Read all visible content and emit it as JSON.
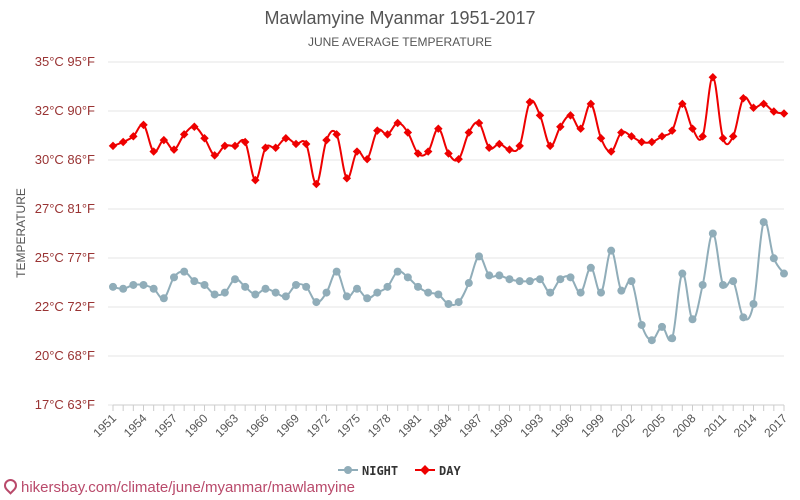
{
  "chart_data": {
    "type": "line",
    "title": "Mawlamyine Myanmar 1951-2017",
    "subtitle": "JUNE AVERAGE TEMPERATURE",
    "ylabel": "TEMPERATURE",
    "ylim": [
      17,
      35
    ],
    "y_ticks": [
      "17°C 63°F",
      "20°C 68°F",
      "22°C 72°F",
      "25°C 77°F",
      "27°C 81°F",
      "30°C 86°F",
      "32°C 90°F",
      "35°C 95°F"
    ],
    "x_tick_labels": [
      "1951",
      "1954",
      "1957",
      "1960",
      "1963",
      "1966",
      "1969",
      "1972",
      "1975",
      "1978",
      "1981",
      "1984",
      "1987",
      "1990",
      "1993",
      "1996",
      "1999",
      "2002",
      "2005",
      "2008",
      "2011",
      "2014",
      "2017"
    ],
    "x_start": 1951,
    "x_end": 2017,
    "grid": true,
    "legend_position": "bottom-center",
    "series": [
      {
        "name": "NIGHT",
        "color": "#90adb9",
        "values": [
          23.2,
          23.1,
          23.3,
          23.3,
          23.1,
          22.6,
          23.7,
          24.0,
          23.5,
          23.3,
          22.8,
          22.9,
          23.6,
          23.2,
          22.8,
          23.1,
          22.9,
          22.7,
          23.3,
          23.2,
          22.4,
          22.9,
          24.0,
          22.7,
          23.1,
          22.6,
          22.9,
          23.2,
          24.0,
          23.7,
          23.2,
          22.9,
          22.8,
          22.3,
          22.4,
          23.4,
          24.8,
          23.8,
          23.8,
          23.6,
          23.5,
          23.5,
          23.6,
          22.9,
          23.6,
          23.7,
          22.9,
          24.2,
          22.9,
          25.1,
          23.0,
          23.5,
          21.2,
          20.4,
          21.1,
          20.5,
          23.9,
          21.5,
          23.3,
          26.0,
          23.3,
          23.5,
          21.6,
          22.3,
          26.6,
          24.7,
          23.9
        ]
      },
      {
        "name": "DAY",
        "color": "#ee0000",
        "values": [
          30.6,
          30.8,
          31.1,
          31.7,
          30.3,
          30.9,
          30.4,
          31.2,
          31.6,
          31.0,
          30.1,
          30.6,
          30.6,
          30.8,
          28.8,
          30.5,
          30.5,
          31.0,
          30.7,
          30.7,
          28.6,
          30.9,
          31.2,
          28.9,
          30.3,
          29.9,
          31.4,
          31.2,
          31.8,
          31.3,
          30.2,
          30.3,
          31.5,
          30.2,
          29.9,
          31.3,
          31.8,
          30.5,
          30.7,
          30.4,
          30.6,
          32.9,
          32.2,
          30.6,
          31.6,
          32.2,
          31.5,
          32.8,
          31.0,
          30.3,
          31.3,
          31.1,
          30.8,
          30.8,
          31.1,
          31.4,
          32.8,
          31.5,
          31.1,
          34.2,
          31.0,
          31.1,
          33.1,
          32.6,
          32.8,
          32.4,
          32.3
        ]
      }
    ]
  },
  "watermark": "hikersbay.com/climate/june/myanmar/mawlamyine"
}
